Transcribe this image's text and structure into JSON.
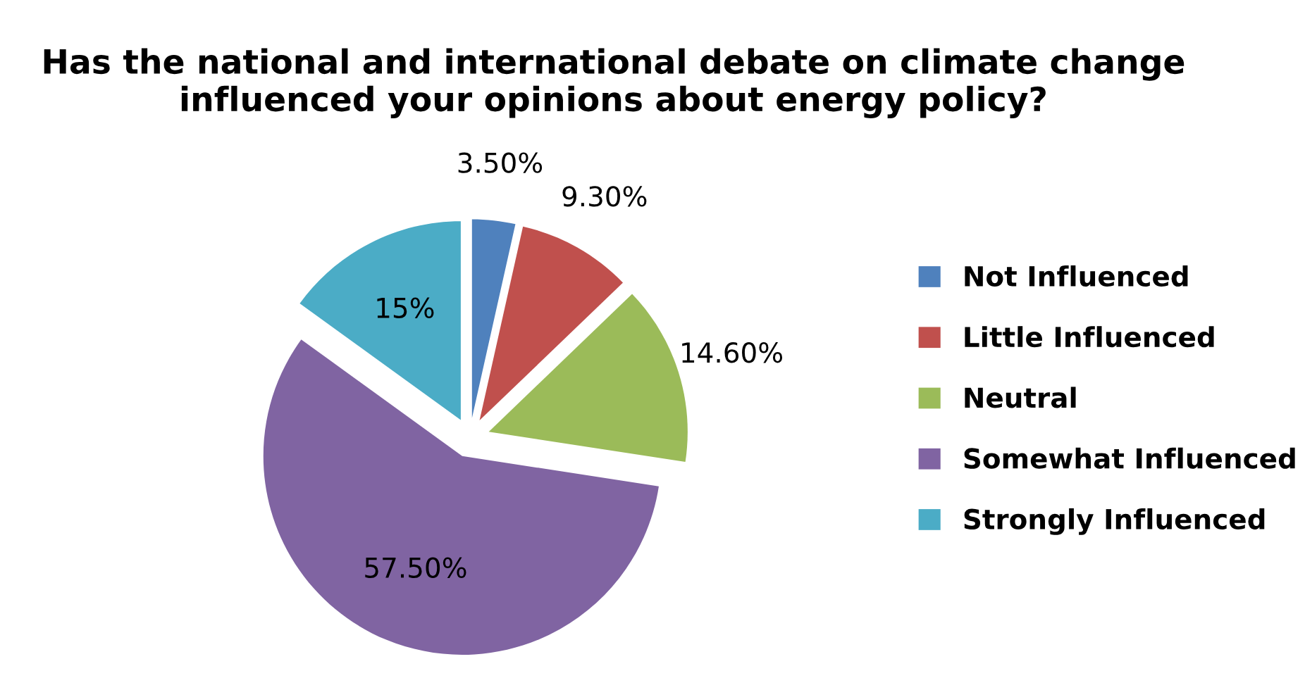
{
  "chart_data": {
    "type": "pie",
    "title": "Has the national and international debate on climate change influenced your opinions about energy policy?",
    "categories": [
      "Not Influenced",
      "Little Influenced",
      "Neutral",
      "Somewhat Influenced",
      "Strongly Influenced"
    ],
    "values": [
      3.5,
      9.3,
      14.6,
      57.5,
      15
    ],
    "value_labels": [
      "3.50%",
      "9.30%",
      "14.60%",
      "57.50%",
      "15%"
    ],
    "colors": [
      "#4f81bd",
      "#c0504d",
      "#9bbb59",
      "#8064a2",
      "#4bacc6"
    ],
    "legend": "right"
  }
}
